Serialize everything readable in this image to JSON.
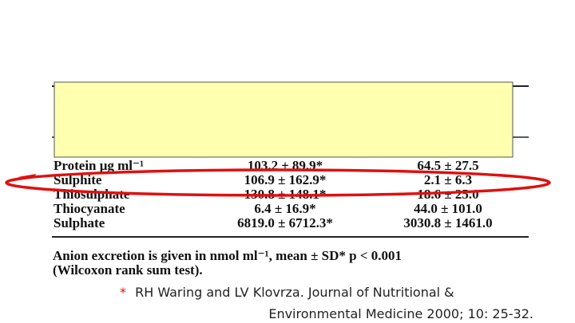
{
  "table": {
    "rows": [
      [
        "Protein μg ml⁻¹",
        "103.2 ± 89.9*",
        "64.5 ± 27.5"
      ],
      [
        "Sulphite",
        "106.9 ± 162.9*",
        "2.1 ± 6.3"
      ],
      [
        "Thiosulphate",
        "130.8 ± 148.1*",
        "18.6 ± 25.0"
      ],
      [
        "Thiocyanate",
        "6.4 ± 16.9*",
        "44.0 ± 101.0"
      ],
      [
        "Sulphate",
        "6819.0 ± 6712.3*",
        "3030.8 ± 1461.0"
      ]
    ]
  },
  "footnote": [
    "Anion excretion is given in nmol ml⁻¹, mean ± SD* p < 0.001",
    "(Wilcoxon rank sum test)."
  ],
  "citation": {
    "marker": "*",
    "lines": [
      "RH Waring and LV Klovrza. Journal of Nutritional &",
      "Environmental Medicine 2000; 10: 25-32."
    ]
  }
}
